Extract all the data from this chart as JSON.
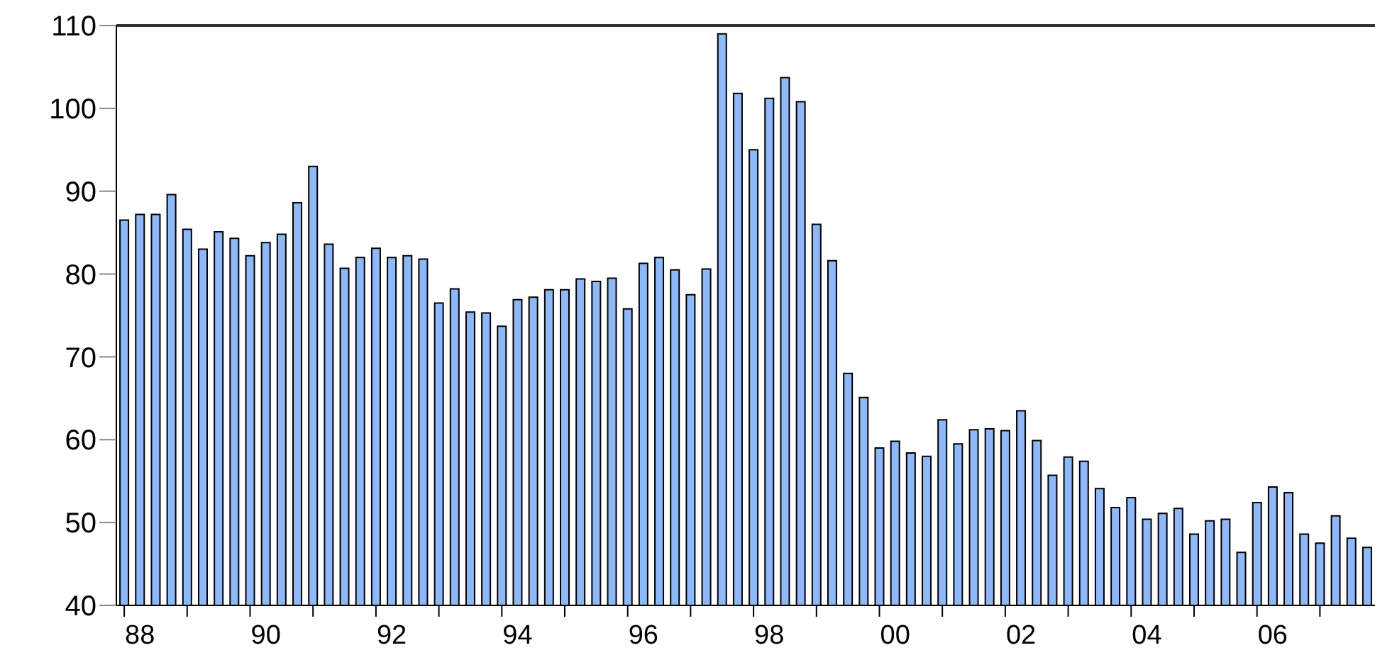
{
  "chart_data": {
    "type": "bar",
    "categories": [
      null,
      "88",
      null,
      null,
      null,
      null,
      null,
      null,
      null,
      "90",
      null,
      null,
      null,
      null,
      null,
      null,
      null,
      "92",
      null,
      null,
      null,
      null,
      null,
      null,
      null,
      "94",
      null,
      null,
      null,
      null,
      null,
      null,
      null,
      "96",
      null,
      null,
      null,
      null,
      null,
      null,
      null,
      "98",
      null,
      null,
      null,
      null,
      null,
      null,
      null,
      "00",
      null,
      null,
      null,
      null,
      null,
      null,
      null,
      "02",
      null,
      null,
      null,
      null,
      null,
      null,
      null,
      "04",
      null,
      null,
      null,
      null,
      null,
      null,
      null,
      "06",
      null,
      null,
      null,
      null,
      null,
      null
    ],
    "values": [
      86.5,
      87.2,
      87.2,
      89.6,
      85.4,
      83,
      85.1,
      84.3,
      82.2,
      83.8,
      84.8,
      88.6,
      93,
      83.6,
      80.7,
      82,
      83.1,
      82,
      82.2,
      81.8,
      76.5,
      78.2,
      75.4,
      75.3,
      73.7,
      76.9,
      77.2,
      78.1,
      78.1,
      79.4,
      79.1,
      79.5,
      75.8,
      81.3,
      82,
      80.5,
      77.5,
      80.6,
      109,
      101.8,
      95,
      101.2,
      103.7,
      100.8,
      86,
      81.6,
      68,
      65.1,
      59,
      59.8,
      58.4,
      58,
      62.4,
      59.5,
      61.2,
      61.3,
      61.1,
      63.5,
      59.9,
      55.7,
      57.9,
      57.4,
      54.1,
      51.8,
      53,
      50.4,
      51.1,
      51.7,
      48.6,
      50.2,
      50.4,
      46.4,
      52.4,
      54.3,
      53.6,
      48.6,
      47.5,
      50.8,
      48.1,
      47
    ],
    "color": "#8fb8f8",
    "ylim": [
      40,
      110
    ],
    "yticks": [
      40,
      50,
      60,
      70,
      80,
      90,
      100,
      110
    ],
    "grid": false,
    "legend": false
  }
}
